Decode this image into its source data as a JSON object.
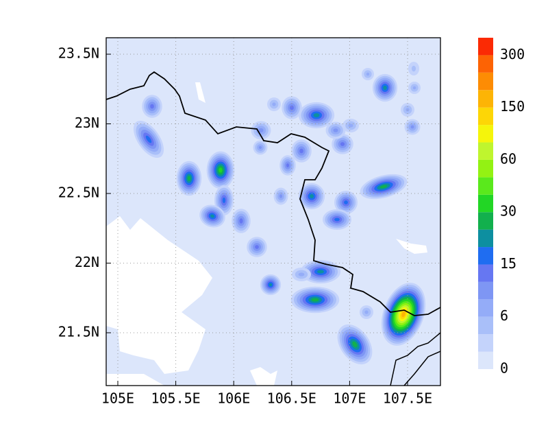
{
  "map": {
    "xticks": [
      "105E",
      "105.5E",
      "106E",
      "106.5E",
      "107E",
      "107.5E"
    ],
    "yticks": [
      "23.5N",
      "23N",
      "22.5N",
      "22N",
      "21.5N"
    ],
    "colorbar": {
      "labels": [
        "0",
        "6",
        "15",
        "30",
        "60",
        "150",
        "300"
      ],
      "colors": [
        "#dce6fb",
        "#c4d3fb",
        "#a9bff9",
        "#94acf8",
        "#7e96f4",
        "#6677f2",
        "#1f6df1",
        "#0d8fa0",
        "#12b04d",
        "#22d625",
        "#5ae91c",
        "#93f213",
        "#bff52e",
        "#f5f50b",
        "#fdd606",
        "#fdb405",
        "#fd8c04",
        "#fd6304",
        "#fb2a04"
      ]
    }
  }
}
